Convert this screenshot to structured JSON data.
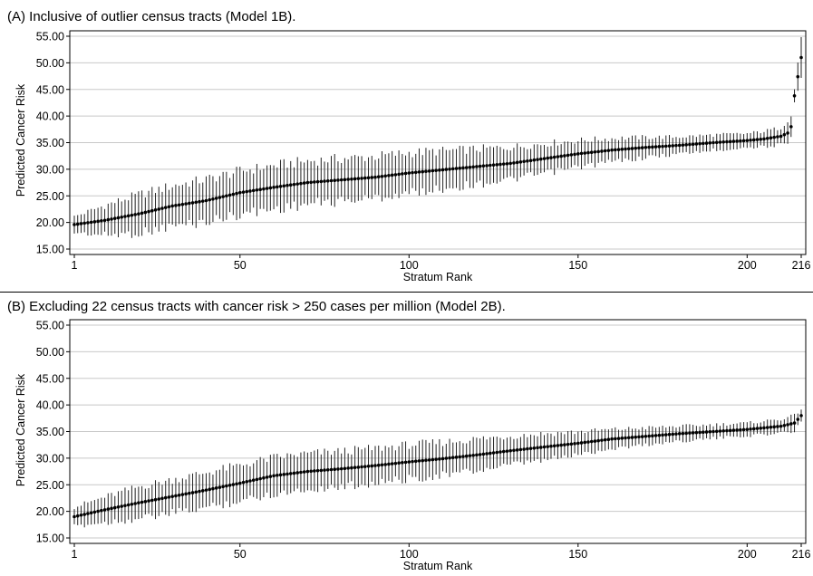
{
  "chart_data": [
    {
      "type": "scatter",
      "title": "(A) Inclusive of outlier census tracts (Model 1B).",
      "xlabel": "Stratum Rank",
      "ylabel": "Predicted Cancer Risk",
      "xlim": [
        1,
        216
      ],
      "ylim": [
        15,
        55
      ],
      "xticks": [
        "1",
        "50",
        "100",
        "150",
        "200",
        "216"
      ],
      "xtick_values": [
        1,
        50,
        100,
        150,
        200,
        216
      ],
      "yticks": [
        "15.00",
        "20.00",
        "25.00",
        "30.00",
        "35.00",
        "40.00",
        "45.00",
        "50.00",
        "55.00"
      ],
      "ytick_values": [
        15,
        20,
        25,
        30,
        35,
        40,
        45,
        50,
        55
      ],
      "grid": true,
      "error_bars": "95% intervals shown as vertical lines",
      "n_strata": 216,
      "anchors": [
        [
          1,
          19.6
        ],
        [
          10,
          20.4
        ],
        [
          20,
          21.6
        ],
        [
          30,
          23.1
        ],
        [
          40,
          24.1
        ],
        [
          50,
          25.6
        ],
        [
          60,
          26.6
        ],
        [
          70,
          27.5
        ],
        [
          80,
          28.0
        ],
        [
          90,
          28.5
        ],
        [
          100,
          29.3
        ],
        [
          110,
          29.9
        ],
        [
          120,
          30.5
        ],
        [
          130,
          31.1
        ],
        [
          140,
          32.0
        ],
        [
          150,
          32.9
        ],
        [
          160,
          33.6
        ],
        [
          170,
          34.1
        ],
        [
          180,
          34.5
        ],
        [
          190,
          35.0
        ],
        [
          200,
          35.4
        ],
        [
          205,
          35.7
        ],
        [
          210,
          36.2
        ],
        [
          212,
          36.8
        ],
        [
          213,
          38.0
        ],
        [
          214,
          43.8
        ],
        [
          216,
          51.0
        ]
      ],
      "half_width_anchors": [
        [
          1,
          1.5
        ],
        [
          10,
          2.8
        ],
        [
          20,
          3.6
        ],
        [
          40,
          4.0
        ],
        [
          60,
          4.1
        ],
        [
          80,
          4.0
        ],
        [
          100,
          3.8
        ],
        [
          120,
          3.3
        ],
        [
          140,
          2.8
        ],
        [
          160,
          2.2
        ],
        [
          180,
          1.6
        ],
        [
          200,
          1.3
        ],
        [
          210,
          1.6
        ],
        [
          212,
          2.6
        ],
        [
          213,
          2.2
        ],
        [
          214,
          1.2
        ],
        [
          216,
          4.0
        ]
      ]
    },
    {
      "type": "scatter",
      "title": "(B) Excluding 22 census tracts with cancer risk > 250 cases per million (Model 2B).",
      "xlabel": "Stratum Rank",
      "ylabel": "Predicted Cancer Risk",
      "xlim": [
        1,
        216
      ],
      "ylim": [
        15,
        55
      ],
      "xticks": [
        "1",
        "50",
        "100",
        "150",
        "200",
        "216"
      ],
      "xtick_values": [
        1,
        50,
        100,
        150,
        200,
        216
      ],
      "yticks": [
        "15.00",
        "20.00",
        "25.00",
        "30.00",
        "35.00",
        "40.00",
        "45.00",
        "50.00",
        "55.00"
      ],
      "ytick_values": [
        15,
        20,
        25,
        30,
        35,
        40,
        45,
        50,
        55
      ],
      "grid": true,
      "error_bars": "95% intervals shown as vertical lines",
      "n_strata": 216,
      "anchors": [
        [
          1,
          19.0
        ],
        [
          10,
          20.3
        ],
        [
          20,
          21.6
        ],
        [
          30,
          22.8
        ],
        [
          40,
          24.0
        ],
        [
          50,
          25.3
        ],
        [
          60,
          26.7
        ],
        [
          70,
          27.5
        ],
        [
          80,
          28.0
        ],
        [
          90,
          28.6
        ],
        [
          100,
          29.3
        ],
        [
          110,
          29.9
        ],
        [
          120,
          30.6
        ],
        [
          130,
          31.4
        ],
        [
          140,
          32.1
        ],
        [
          150,
          32.8
        ],
        [
          160,
          33.6
        ],
        [
          170,
          34.1
        ],
        [
          180,
          34.6
        ],
        [
          190,
          35.0
        ],
        [
          200,
          35.4
        ],
        [
          210,
          36.0
        ],
        [
          214,
          36.6
        ],
        [
          216,
          38.0
        ]
      ],
      "half_width_anchors": [
        [
          1,
          1.8
        ],
        [
          10,
          2.4
        ],
        [
          20,
          3.0
        ],
        [
          40,
          3.3
        ],
        [
          60,
          3.4
        ],
        [
          80,
          3.3
        ],
        [
          100,
          3.2
        ],
        [
          120,
          3.0
        ],
        [
          140,
          2.5
        ],
        [
          160,
          1.8
        ],
        [
          180,
          1.4
        ],
        [
          200,
          1.2
        ],
        [
          214,
          1.4
        ],
        [
          216,
          1.3
        ]
      ]
    }
  ]
}
